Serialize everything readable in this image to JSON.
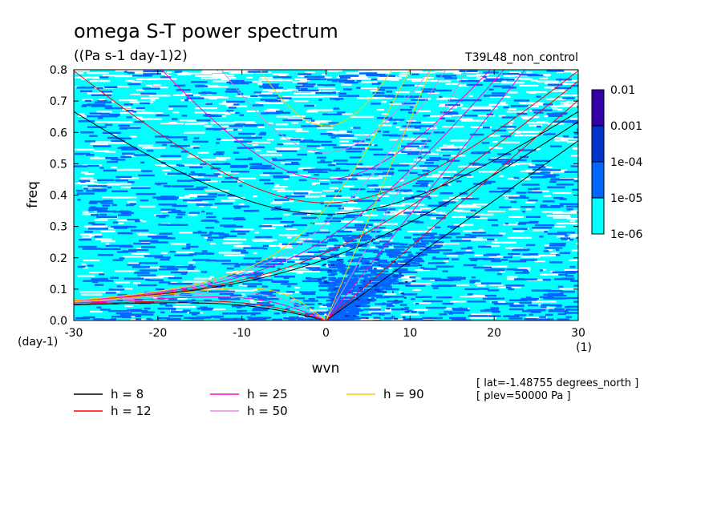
{
  "chart_data": {
    "type": "heatmap",
    "title": "omega S-T power spectrum",
    "subtitle": "((Pa s-1 day-1)2)",
    "run_label": "T39L48_non_control",
    "xlabel": "wvn",
    "ylabel": "freq",
    "x_unit": "(1)",
    "y_unit": "(day-1)",
    "xlim": [
      -30,
      30
    ],
    "ylim": [
      0,
      0.8
    ],
    "x_ticks": [
      -30,
      -20,
      -10,
      0,
      10,
      20,
      30
    ],
    "y_ticks": [
      0.0,
      0.1,
      0.2,
      0.3,
      0.4,
      0.5,
      0.6,
      0.7,
      0.8
    ],
    "x_tick_labels": [
      "-30",
      "-20",
      "-10",
      "0",
      "10",
      "20",
      "30"
    ],
    "y_tick_labels": [
      "0.0",
      "0.1",
      "0.2",
      "0.3",
      "0.4",
      "0.5",
      "0.6",
      "0.7",
      "0.8"
    ],
    "colorbar": {
      "levels": [
        "1e-06",
        "1e-05",
        "1e-04",
        "0.001",
        "0.01"
      ],
      "colors": [
        "#00ffff",
        "#0066ff",
        "#0033cc",
        "#3300aa"
      ]
    },
    "dispersion_curves": [
      {
        "label": "h =  8",
        "color": "#000000"
      },
      {
        "label": "h = 12",
        "color": "#ff0000"
      },
      {
        "label": "h = 25",
        "color": "#ff00cc"
      },
      {
        "label": "h = 50",
        "color": "#dd88dd"
      },
      {
        "label": "h = 90",
        "color": "#ffcc00"
      }
    ],
    "annotations": [
      "[ lat=-1.48755 degrees_north ]",
      "[ plev=50000 Pa ]"
    ]
  }
}
